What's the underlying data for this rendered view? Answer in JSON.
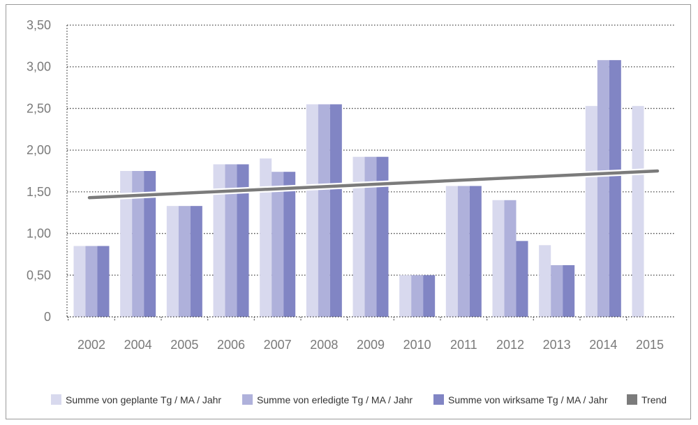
{
  "colors": {
    "geplant": "#d8d9ee",
    "erledigt": "#afb1db",
    "wirksam": "#8185c4",
    "trend": "#7b7b7b",
    "grid": "#444444",
    "frame": "#9a9a9a"
  },
  "chart_data": {
    "type": "bar",
    "title": "",
    "xlabel": "",
    "ylabel": "",
    "ylim": [
      0,
      3.5
    ],
    "y_ticks": [
      "0",
      "0,50",
      "1,00",
      "1,50",
      "2,00",
      "2,50",
      "3,00",
      "3,50"
    ],
    "categories": [
      "2002",
      "2004",
      "2005",
      "2006",
      "2007",
      "2008",
      "2009",
      "2010",
      "2011",
      "2012",
      "2013",
      "2014",
      "2015"
    ],
    "series": [
      {
        "name": "Summe von geplante Tg / MA / Jahr",
        "color": "#d8d9ee",
        "values": [
          0.85,
          1.75,
          1.33,
          1.83,
          1.9,
          2.55,
          1.92,
          0.5,
          1.57,
          1.4,
          0.86,
          2.53,
          2.53
        ]
      },
      {
        "name": "Summe von erledigte Tg / MA / Jahr",
        "color": "#afb1db",
        "values": [
          0.85,
          1.75,
          1.33,
          1.83,
          1.74,
          2.55,
          1.92,
          0.5,
          1.57,
          1.4,
          0.62,
          3.08,
          null
        ]
      },
      {
        "name": "Summe von wirksame Tg / MA / Jahr",
        "color": "#8185c4",
        "values": [
          0.85,
          1.75,
          1.33,
          1.83,
          1.74,
          2.55,
          1.92,
          0.5,
          1.57,
          0.91,
          0.62,
          3.08,
          null
        ]
      }
    ],
    "trend": {
      "name": "Trend",
      "color": "#7b7b7b",
      "start": 1.43,
      "end": 1.75
    },
    "grid": true,
    "legend": "bottom"
  }
}
